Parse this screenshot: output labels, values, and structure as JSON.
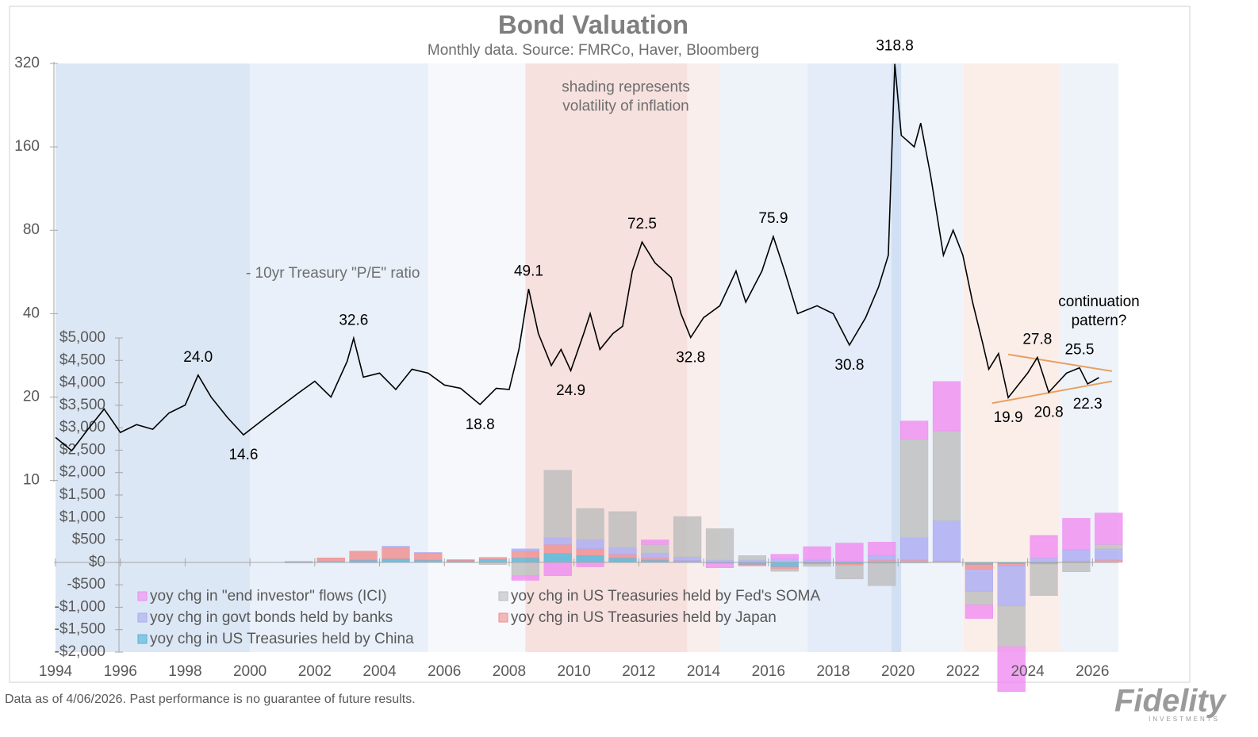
{
  "chart_data": {
    "type": "line",
    "title": "Bond Valuation",
    "subtitle": "Monthly data.  Source: FMRCo, Haver, Bloomberg",
    "annotations": [
      {
        "text": [
          "shading represents",
          "volatility of inflation"
        ],
        "x": 2011.6,
        "y": 262
      },
      {
        "text": [
          "continuation",
          "pattern?"
        ],
        "x": 2026.2,
        "y": 44
      }
    ],
    "footnote": "Data as of 4/06/2026. Past performance is no guarantee of future results.",
    "logo": {
      "name": "Fidelity",
      "sub": "INVESTMENTS"
    },
    "xlim": [
      1994,
      2026.8
    ],
    "xticks": [
      1994,
      1996,
      1998,
      2000,
      2002,
      2004,
      2006,
      2008,
      2010,
      2012,
      2014,
      2016,
      2018,
      2020,
      2022,
      2024,
      2026
    ],
    "ylim": [
      2.4,
      320
    ],
    "log_y": true,
    "yticks": [
      10,
      20,
      40,
      80,
      160,
      320
    ],
    "y2lim": [
      -2000,
      5000
    ],
    "y2ticks": [
      {
        "value": 5000,
        "label": "$5,000"
      },
      {
        "value": 4500,
        "label": "$4,500"
      },
      {
        "value": 4000,
        "label": "$4,000"
      },
      {
        "value": 3500,
        "label": "$3,500"
      },
      {
        "value": 3000,
        "label": "$3,000"
      },
      {
        "value": 2500,
        "label": "$2,500"
      },
      {
        "value": 2000,
        "label": "$2,000"
      },
      {
        "value": 1500,
        "label": "$1,500"
      },
      {
        "value": 1000,
        "label": "$1,000"
      },
      {
        "value": 500,
        "label": "$500"
      },
      {
        "value": 0,
        "label": "$0"
      },
      {
        "value": -500,
        "label": "-$500"
      },
      {
        "value": -1000,
        "label": "-$1,000"
      },
      {
        "value": -1500,
        "label": "-$1,500"
      },
      {
        "value": -2000,
        "label": "-$2,000"
      }
    ],
    "shading": [
      {
        "from": 1994,
        "to": 2000,
        "color": "#dce7f5"
      },
      {
        "from": 2000,
        "to": 2005.5,
        "color": "#e9f0f9"
      },
      {
        "from": 2005.5,
        "to": 2008.5,
        "color": "#f6f8fc"
      },
      {
        "from": 2008.5,
        "to": 2013.5,
        "color": "#f6e1de"
      },
      {
        "from": 2013.5,
        "to": 2014.5,
        "color": "#f9eeec"
      },
      {
        "from": 2014.5,
        "to": 2017.2,
        "color": "#eef3fa"
      },
      {
        "from": 2017.2,
        "to": 2019.8,
        "color": "#e3ecf8"
      },
      {
        "from": 2019.8,
        "to": 2020.1,
        "color": "#d2e0f3"
      },
      {
        "from": 2020.1,
        "to": 2022,
        "color": "#eff4fb"
      },
      {
        "from": 2022,
        "to": 2025,
        "color": "#fbeee9"
      },
      {
        "from": 2025,
        "to": 2026.8,
        "color": "#eef3fa"
      }
    ],
    "trendlines": [
      {
        "x": [
          2023.4,
          2026.6
        ],
        "y": [
          28.5,
          24.8
        ],
        "color": "#e8a060"
      },
      {
        "x": [
          2022.9,
          2026.6
        ],
        "y": [
          19.0,
          22.8
        ],
        "color": "#e8a060"
      }
    ],
    "x": [
      2001,
      2002,
      2003,
      2004,
      2005,
      2006,
      2007,
      2008,
      2009,
      2010,
      2011,
      2012,
      2013,
      2014,
      2015,
      2016,
      2017,
      2018,
      2019,
      2020,
      2021,
      2022,
      2023,
      2024,
      2025,
      2026
    ],
    "series": [
      {
        "name": "10yr Treasury \"P/E\" ratio",
        "color": "#000000",
        "x": [
          1994.0,
          1994.5,
          1995.0,
          1995.5,
          1996.0,
          1996.5,
          1997.0,
          1997.5,
          1998.0,
          1998.4,
          1998.8,
          1999.3,
          1999.8,
          2000.5,
          2001.0,
          2001.5,
          2002.0,
          2002.5,
          2003.0,
          2003.2,
          2003.5,
          2004.0,
          2004.5,
          2005.0,
          2005.5,
          2006.0,
          2006.5,
          2007.1,
          2007.6,
          2008.0,
          2008.3,
          2008.6,
          2008.9,
          2009.3,
          2009.6,
          2009.9,
          2010.3,
          2010.5,
          2010.8,
          2011.2,
          2011.5,
          2011.8,
          2012.1,
          2012.5,
          2013.0,
          2013.3,
          2013.6,
          2014.0,
          2014.5,
          2015.0,
          2015.3,
          2015.8,
          2016.15,
          2016.5,
          2016.9,
          2017.5,
          2018.0,
          2018.5,
          2019.0,
          2019.4,
          2019.7,
          2019.9,
          2020.1,
          2020.5,
          2020.7,
          2021.0,
          2021.2,
          2021.4,
          2021.7,
          2022.0,
          2022.3,
          2022.6,
          2022.8,
          2023.1,
          2023.4,
          2024.0,
          2024.3,
          2024.65,
          2025.2,
          2025.6,
          2025.85,
          2026.2
        ],
        "values": [
          14.3,
          12.8,
          15.3,
          18.1,
          14.9,
          15.9,
          15.3,
          17.5,
          18.7,
          24.0,
          20.0,
          16.9,
          14.6,
          16.9,
          18.7,
          20.7,
          22.8,
          20.0,
          26.9,
          32.6,
          23.6,
          24.4,
          21.3,
          25.2,
          24.4,
          22.1,
          21.5,
          18.8,
          21.5,
          21.3,
          29.7,
          49.1,
          33.9,
          26.0,
          29.7,
          24.9,
          33.9,
          40.0,
          29.7,
          33.9,
          36.0,
          57.0,
          72.5,
          61.0,
          54.0,
          40.0,
          32.8,
          38.7,
          42.7,
          57.0,
          44.0,
          57.0,
          75.9,
          57.0,
          40.0,
          42.7,
          40.0,
          30.8,
          38.7,
          50.0,
          65.0,
          318.8,
          176,
          160,
          195,
          127,
          91,
          65,
          80,
          65,
          44,
          31.7,
          25.2,
          28.7,
          19.9,
          24.4,
          27.8,
          20.8,
          24.4,
          25.5,
          22.3,
          23.5
        ],
        "value_labels": [
          null,
          null,
          null,
          null,
          null,
          null,
          null,
          null,
          null,
          "24.0",
          null,
          null,
          "14.6",
          null,
          null,
          null,
          null,
          null,
          null,
          "32.6",
          null,
          null,
          null,
          null,
          null,
          null,
          null,
          "18.8",
          null,
          null,
          null,
          "49.1",
          null,
          null,
          null,
          "24.9",
          null,
          null,
          null,
          null,
          null,
          null,
          "72.5",
          null,
          null,
          null,
          "32.8",
          null,
          null,
          null,
          null,
          null,
          "75.9",
          null,
          null,
          null,
          null,
          "30.8",
          null,
          null,
          null,
          "318.8",
          null,
          null,
          null,
          null,
          null,
          null,
          null,
          null,
          null,
          null,
          null,
          null,
          "19.9",
          null,
          "27.8",
          "20.8",
          null,
          "25.5",
          "22.3",
          null
        ]
      },
      {
        "name": "yoy chg in \"end investor\" flows (ICI)",
        "type": "bar",
        "axis": "y2",
        "color": "#f08cf0",
        "values": [
          0,
          0,
          0,
          0,
          0,
          0,
          0,
          -100,
          -300,
          -100,
          0,
          100,
          0,
          -100,
          0,
          100,
          300,
          400,
          300,
          400,
          1100,
          -300,
          -1000,
          500,
          700,
          700
        ]
      },
      {
        "name": "yoy chg in US Treasuries held by Fed's SOMA",
        "type": "bar",
        "axis": "y2",
        "color": "#bdbdbd",
        "values": [
          0,
          0,
          0,
          0,
          0,
          0,
          -50,
          -300,
          1500,
          700,
          800,
          200,
          900,
          700,
          100,
          -50,
          -50,
          -300,
          -500,
          2200,
          2000,
          -300,
          -900,
          -700,
          -200,
          100
        ]
      },
      {
        "name": "yoy chg in govt bonds held by banks",
        "type": "bar",
        "axis": "y2",
        "color": "#aaaaf2",
        "values": [
          0,
          0,
          -10,
          30,
          20,
          0,
          0,
          50,
          150,
          200,
          150,
          100,
          80,
          50,
          50,
          80,
          50,
          30,
          100,
          500,
          900,
          -500,
          -900,
          100,
          250,
          250
        ]
      },
      {
        "name": "yoy chg in US Treasuries held by Japan",
        "type": "bar",
        "axis": "y2",
        "color": "#f08c8c",
        "values": [
          20,
          80,
          200,
          250,
          150,
          20,
          50,
          150,
          200,
          150,
          80,
          50,
          20,
          0,
          -30,
          -50,
          -20,
          -40,
          50,
          50,
          30,
          -100,
          -50,
          -20,
          30,
          50
        ]
      },
      {
        "name": "yoy chg in US Treasuries held by China",
        "type": "bar",
        "axis": "y2",
        "color": "#4fb3d9",
        "values": [
          -10,
          20,
          50,
          80,
          50,
          40,
          60,
          100,
          200,
          150,
          100,
          50,
          20,
          -20,
          -50,
          -100,
          -20,
          -30,
          -20,
          -10,
          0,
          -50,
          -30,
          -20,
          -10,
          0
        ]
      }
    ]
  }
}
